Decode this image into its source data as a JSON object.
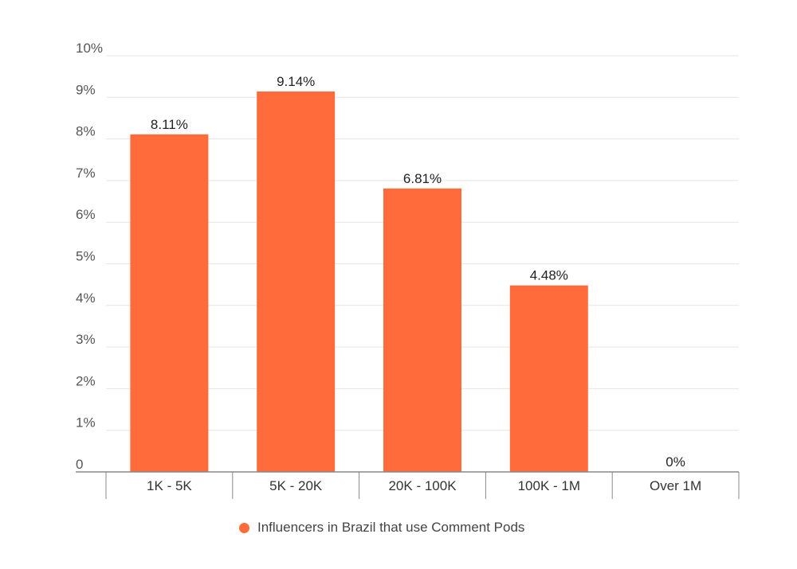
{
  "chart_data": {
    "type": "bar",
    "categories": [
      "1K - 5K",
      "5K - 20K",
      "20K - 100K",
      "100K - 1M",
      "Over 1M"
    ],
    "series": [
      {
        "name": "Influencers in Brazil that use Comment Pods",
        "values": [
          8.11,
          9.14,
          6.81,
          4.48,
          0
        ],
        "data_labels": [
          "8.11%",
          "9.14%",
          "6.81%",
          "4.48%",
          "0%"
        ]
      }
    ],
    "y_ticks": [
      "0",
      "1%",
      "2%",
      "3%",
      "4%",
      "5%",
      "6%",
      "7%",
      "8%",
      "9%",
      "10%"
    ],
    "ylim": [
      0,
      10
    ],
    "grid": true,
    "legend_position": "bottom",
    "title": "",
    "xlabel": "",
    "ylabel": "",
    "colors": {
      "bar": "#ff6b3a",
      "grid": "#e6e6e6",
      "axis": "#888888"
    }
  }
}
